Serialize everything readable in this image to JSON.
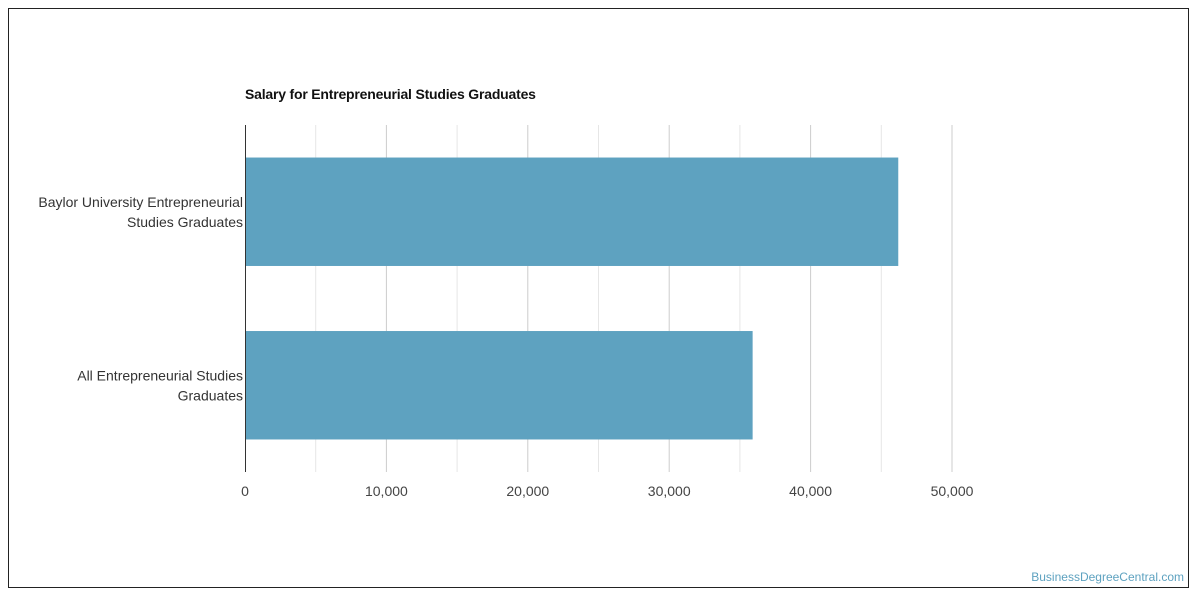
{
  "chart_data": {
    "type": "bar",
    "orientation": "horizontal",
    "title": "Salary for Entrepreneurial Studies Graduates",
    "categories": [
      [
        "Baylor University Entrepreneurial",
        "Studies Graduates"
      ],
      [
        "All Entrepreneurial Studies",
        "Graduates"
      ]
    ],
    "values": [
      46200,
      35900
    ],
    "xlim": [
      0,
      50000
    ],
    "xticks": [
      0,
      10000,
      20000,
      30000,
      40000,
      50000
    ],
    "xtick_labels": [
      "0",
      "10,000",
      "20,000",
      "30,000",
      "40,000",
      "50,000"
    ],
    "minor_gridlines": [
      5000,
      15000,
      25000,
      35000,
      45000
    ],
    "grid": true,
    "bar_color": "#5ea2c0",
    "xlabel": "",
    "ylabel": ""
  },
  "watermark": "BusinessDegreeCentral.com"
}
